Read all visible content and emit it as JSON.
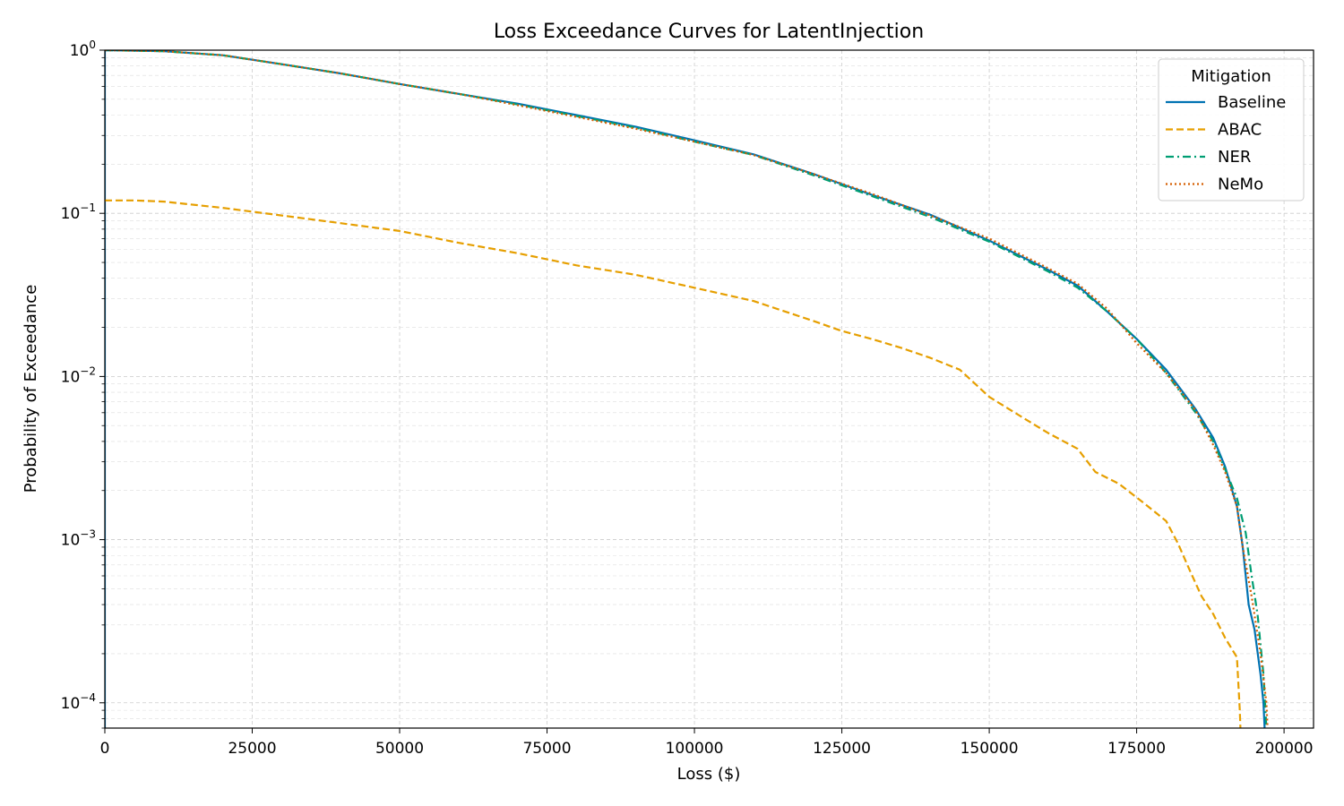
{
  "chart_data": {
    "type": "line",
    "title": "Loss Exceedance Curves for LatentInjection",
    "xlabel": "Loss ($)",
    "ylabel": "Probability of Exceedance",
    "xscale": "linear",
    "yscale": "log",
    "xlim": [
      0,
      205000
    ],
    "ylim": [
      7e-05,
      1
    ],
    "grid": true,
    "x_ticks": [
      0,
      25000,
      50000,
      75000,
      100000,
      125000,
      150000,
      175000,
      200000
    ],
    "x_tick_labels": [
      "0",
      "25000",
      "50000",
      "75000",
      "100000",
      "125000",
      "150000",
      "175000",
      "200000"
    ],
    "y_ticks": [
      {
        "value": 1,
        "base": "10",
        "exponent": "0"
      },
      {
        "value": 0.1,
        "base": "10",
        "exponent": "−1"
      },
      {
        "value": 0.01,
        "base": "10",
        "exponent": "−2"
      },
      {
        "value": 0.001,
        "base": "10",
        "exponent": "−3"
      },
      {
        "value": 0.0001,
        "base": "10",
        "exponent": "−4"
      }
    ],
    "legend": {
      "title": "Mitigation",
      "position": "top-right"
    },
    "series": [
      {
        "name": "Baseline",
        "color": "#0072b2",
        "style": "solid",
        "points": [
          [
            0,
            7e-05
          ],
          [
            0,
            1
          ],
          [
            10000,
            0.985
          ],
          [
            20000,
            0.93
          ],
          [
            30000,
            0.82
          ],
          [
            40000,
            0.72
          ],
          [
            50000,
            0.62
          ],
          [
            60000,
            0.54
          ],
          [
            70000,
            0.47
          ],
          [
            80000,
            0.4
          ],
          [
            90000,
            0.34
          ],
          [
            100000,
            0.28
          ],
          [
            110000,
            0.23
          ],
          [
            120000,
            0.175
          ],
          [
            130000,
            0.13
          ],
          [
            140000,
            0.098
          ],
          [
            150000,
            0.068
          ],
          [
            160000,
            0.045
          ],
          [
            165000,
            0.036
          ],
          [
            170000,
            0.025
          ],
          [
            175000,
            0.017
          ],
          [
            180000,
            0.011
          ],
          [
            185000,
            0.0063
          ],
          [
            188000,
            0.0042
          ],
          [
            190000,
            0.0028
          ],
          [
            192000,
            0.0016
          ],
          [
            193000,
            0.0009
          ],
          [
            194000,
            0.0004
          ],
          [
            195000,
            0.00028
          ],
          [
            196000,
            0.00015
          ],
          [
            196500,
            0.0001
          ],
          [
            196700,
            7e-05
          ]
        ]
      },
      {
        "name": "ABAC",
        "color": "#e69f00",
        "style": "dashed",
        "points": [
          [
            0,
            0.12
          ],
          [
            5000,
            0.12
          ],
          [
            10000,
            0.118
          ],
          [
            20000,
            0.108
          ],
          [
            30000,
            0.097
          ],
          [
            40000,
            0.087
          ],
          [
            50000,
            0.078
          ],
          [
            60000,
            0.066
          ],
          [
            70000,
            0.057
          ],
          [
            80000,
            0.048
          ],
          [
            90000,
            0.042
          ],
          [
            100000,
            0.035
          ],
          [
            110000,
            0.029
          ],
          [
            120000,
            0.022
          ],
          [
            125000,
            0.019
          ],
          [
            130000,
            0.017
          ],
          [
            135000,
            0.015
          ],
          [
            140000,
            0.013
          ],
          [
            145000,
            0.011
          ],
          [
            150000,
            0.0075
          ],
          [
            155000,
            0.0058
          ],
          [
            160000,
            0.0045
          ],
          [
            165000,
            0.0036
          ],
          [
            168000,
            0.0026
          ],
          [
            172000,
            0.0022
          ],
          [
            176000,
            0.0017
          ],
          [
            180000,
            0.0013
          ],
          [
            182000,
            0.00095
          ],
          [
            184000,
            0.00065
          ],
          [
            186000,
            0.00045
          ],
          [
            188000,
            0.00035
          ],
          [
            190000,
            0.00025
          ],
          [
            192000,
            0.00019
          ],
          [
            192500,
            9e-05
          ],
          [
            192600,
            7e-05
          ]
        ]
      },
      {
        "name": "NER",
        "color": "#009e73",
        "style": "dashdot",
        "points": [
          [
            0,
            1
          ],
          [
            10000,
            0.985
          ],
          [
            20000,
            0.93
          ],
          [
            30000,
            0.82
          ],
          [
            40000,
            0.72
          ],
          [
            50000,
            0.62
          ],
          [
            60000,
            0.54
          ],
          [
            70000,
            0.465
          ],
          [
            80000,
            0.395
          ],
          [
            90000,
            0.335
          ],
          [
            100000,
            0.275
          ],
          [
            110000,
            0.228
          ],
          [
            120000,
            0.172
          ],
          [
            130000,
            0.128
          ],
          [
            140000,
            0.095
          ],
          [
            150000,
            0.067
          ],
          [
            160000,
            0.044
          ],
          [
            165000,
            0.035
          ],
          [
            170000,
            0.025
          ],
          [
            175000,
            0.017
          ],
          [
            180000,
            0.0105
          ],
          [
            185000,
            0.006
          ],
          [
            188000,
            0.004
          ],
          [
            190000,
            0.0027
          ],
          [
            192000,
            0.0018
          ],
          [
            193500,
            0.0011
          ],
          [
            194500,
            0.0006
          ],
          [
            195500,
            0.00035
          ],
          [
            196500,
            0.00015
          ],
          [
            197000,
            7e-05
          ]
        ]
      },
      {
        "name": "NeMo",
        "color": "#d55e00",
        "style": "dotted",
        "points": [
          [
            0,
            1
          ],
          [
            10000,
            0.985
          ],
          [
            20000,
            0.93
          ],
          [
            30000,
            0.82
          ],
          [
            40000,
            0.72
          ],
          [
            50000,
            0.62
          ],
          [
            60000,
            0.54
          ],
          [
            70000,
            0.46
          ],
          [
            80000,
            0.39
          ],
          [
            90000,
            0.33
          ],
          [
            100000,
            0.275
          ],
          [
            110000,
            0.228
          ],
          [
            120000,
            0.175
          ],
          [
            130000,
            0.132
          ],
          [
            140000,
            0.097
          ],
          [
            150000,
            0.07
          ],
          [
            160000,
            0.046
          ],
          [
            165000,
            0.037
          ],
          [
            170000,
            0.026
          ],
          [
            175000,
            0.016
          ],
          [
            180000,
            0.0105
          ],
          [
            185000,
            0.0062
          ],
          [
            188000,
            0.0038
          ],
          [
            190000,
            0.0026
          ],
          [
            192000,
            0.0016
          ],
          [
            193000,
            0.0009
          ],
          [
            194500,
            0.00045
          ],
          [
            196000,
            0.0002
          ],
          [
            197000,
            0.0001
          ],
          [
            197200,
            7e-05
          ]
        ]
      }
    ]
  }
}
